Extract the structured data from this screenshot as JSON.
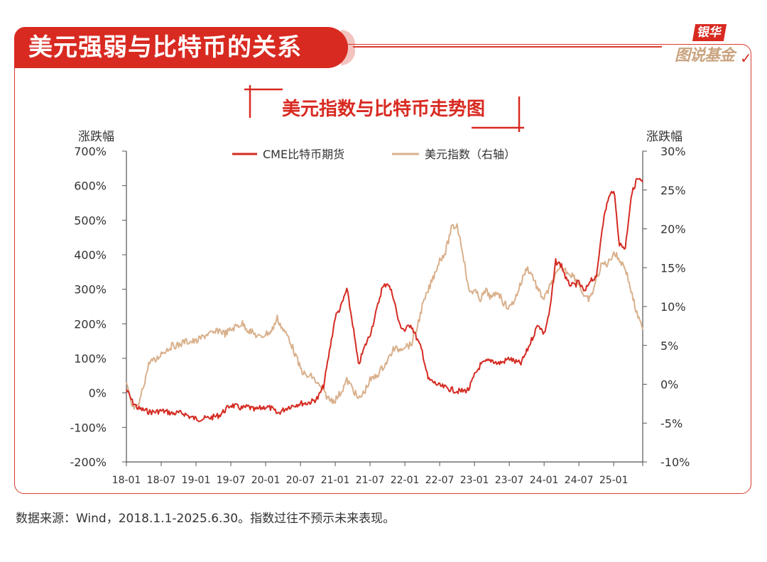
{
  "header": {
    "title": "美元强弱与比特币的关系"
  },
  "brand": {
    "top": "银华",
    "bottom": "图说基金"
  },
  "footer": {
    "source": "数据来源：Wind，2018.1.1-2025.6.30。指数过往不预示未来表现。"
  },
  "colors": {
    "accent": "#d82a21",
    "btc": "#d42b22",
    "usd": "#d9b08c",
    "axis": "#555555"
  },
  "chart_data": {
    "type": "line",
    "title": "美元指数与比特币走势图",
    "left_axis": {
      "label": "涨跌幅",
      "range": [
        -200,
        700
      ],
      "ticks": [
        "700%",
        "600%",
        "500%",
        "400%",
        "300%",
        "200%",
        "100%",
        "0%",
        "-100%",
        "-200%"
      ]
    },
    "right_axis": {
      "label": "涨跌幅",
      "range": [
        -10,
        30
      ],
      "ticks": [
        "30%",
        "25%",
        "20%",
        "15%",
        "10%",
        "5%",
        "0%",
        "-5%",
        "-10%"
      ]
    },
    "x_ticks": [
      "18-01",
      "18-07",
      "19-01",
      "19-07",
      "20-01",
      "20-07",
      "21-01",
      "21-07",
      "22-01",
      "22-07",
      "23-01",
      "23-07",
      "24-01",
      "24-07",
      "25-01"
    ],
    "x": [
      "18-01",
      "18-02",
      "18-03",
      "18-04",
      "18-05",
      "18-06",
      "18-07",
      "18-08",
      "18-09",
      "18-10",
      "18-11",
      "18-12",
      "19-01",
      "19-02",
      "19-03",
      "19-04",
      "19-05",
      "19-06",
      "19-07",
      "19-08",
      "19-09",
      "19-10",
      "19-11",
      "19-12",
      "20-01",
      "20-02",
      "20-03",
      "20-04",
      "20-05",
      "20-06",
      "20-07",
      "20-08",
      "20-09",
      "20-10",
      "20-11",
      "20-12",
      "21-01",
      "21-02",
      "21-03",
      "21-04",
      "21-05",
      "21-06",
      "21-07",
      "21-08",
      "21-09",
      "21-10",
      "21-11",
      "21-12",
      "22-01",
      "22-02",
      "22-03",
      "22-04",
      "22-05",
      "22-06",
      "22-07",
      "22-08",
      "22-09",
      "22-10",
      "22-11",
      "22-12",
      "23-01",
      "23-02",
      "23-03",
      "23-04",
      "23-05",
      "23-06",
      "23-07",
      "23-08",
      "23-09",
      "23-10",
      "23-11",
      "23-12",
      "24-01",
      "24-02",
      "24-03",
      "24-04",
      "24-05",
      "24-06",
      "24-07",
      "24-08",
      "24-09",
      "24-10",
      "24-11",
      "24-12",
      "25-01",
      "25-02",
      "25-03",
      "25-04",
      "25-05",
      "25-06"
    ],
    "legend": [
      "CME比特币期货",
      "美元指数（右轴）"
    ],
    "series": [
      {
        "name": "CME比特币期货",
        "axis": "left",
        "values": [
          10,
          -25,
          -45,
          -50,
          -55,
          -55,
          -52,
          -55,
          -60,
          -58,
          -60,
          -70,
          -75,
          -75,
          -73,
          -70,
          -65,
          -50,
          -35,
          -40,
          -45,
          -40,
          -50,
          -45,
          -40,
          -45,
          -60,
          -50,
          -40,
          -35,
          -30,
          -30,
          -25,
          -15,
          20,
          120,
          220,
          250,
          300,
          200,
          80,
          130,
          170,
          230,
          300,
          320,
          280,
          200,
          180,
          200,
          160,
          120,
          40,
          30,
          20,
          15,
          10,
          5,
          5,
          10,
          50,
          80,
          90,
          95,
          85,
          90,
          100,
          90,
          85,
          120,
          160,
          200,
          170,
          240,
          380,
          370,
          320,
          310,
          320,
          290,
          330,
          330,
          480,
          560,
          590,
          430,
          420,
          570,
          620,
          610
        ]
      },
      {
        "name": "美元指数（右轴）",
        "axis": "right",
        "values": [
          0,
          -3,
          -3,
          0,
          3,
          3,
          4,
          4.5,
          5,
          5,
          5.5,
          5.5,
          5.5,
          6,
          6.5,
          6.5,
          7,
          6.5,
          7,
          7.5,
          7.8,
          7,
          6.5,
          6,
          6.5,
          6.8,
          8.5,
          7,
          6,
          4,
          2,
          1,
          1,
          0,
          -1,
          -2,
          -2,
          -1,
          0.5,
          -0.5,
          -2,
          -1,
          0.5,
          1,
          2,
          3,
          4.5,
          4.5,
          5,
          5,
          7,
          10,
          12,
          14,
          16,
          17,
          20,
          20.5,
          17,
          12,
          12,
          11,
          12,
          11,
          12,
          10.5,
          9.8,
          11,
          13,
          15,
          14,
          12,
          11,
          12.5,
          14,
          15,
          14.5,
          14,
          13,
          11,
          11,
          13.5,
          15.5,
          15.5,
          17,
          16,
          15,
          12,
          9,
          7
        ]
      }
    ]
  }
}
